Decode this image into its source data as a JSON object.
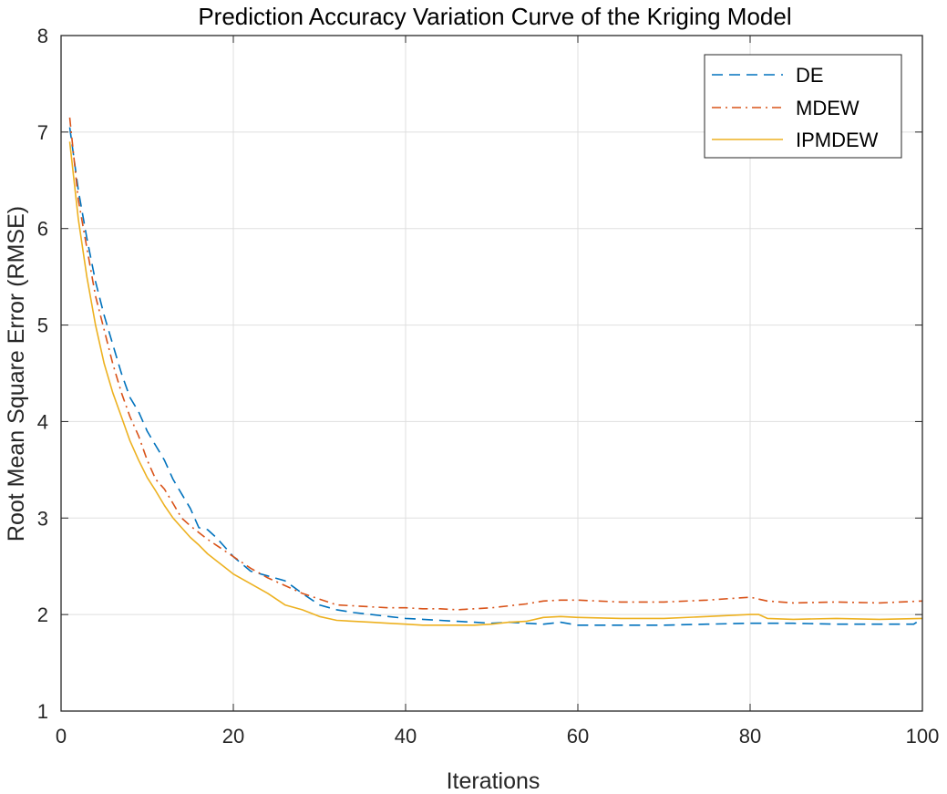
{
  "chart_data": {
    "type": "line",
    "title": "Prediction Accuracy Variation Curve of the Kriging Model",
    "xlabel": "Iterations",
    "ylabel": "Root Mean Square Error (RMSE)",
    "xlim": [
      0,
      100
    ],
    "ylim": [
      1,
      8
    ],
    "xticks": [
      0,
      20,
      40,
      60,
      80,
      100
    ],
    "yticks": [
      1,
      2,
      3,
      4,
      5,
      6,
      7,
      8
    ],
    "grid": true,
    "legend": "top-right",
    "series": [
      {
        "name": "DE",
        "style": "dashed",
        "color": "#0072BD",
        "x": [
          1,
          2,
          3,
          4,
          5,
          6,
          7,
          8,
          9,
          10,
          11,
          12,
          13,
          14,
          15,
          16,
          17,
          18,
          19,
          20,
          22,
          24,
          26,
          28,
          30,
          32,
          34,
          36,
          38,
          40,
          42,
          44,
          46,
          48,
          50,
          52,
          54,
          56,
          58,
          60,
          65,
          70,
          75,
          80,
          85,
          90,
          95,
          99,
          100
        ],
        "values": [
          7.05,
          6.4,
          5.9,
          5.45,
          5.1,
          4.8,
          4.5,
          4.25,
          4.1,
          3.9,
          3.75,
          3.6,
          3.4,
          3.25,
          3.1,
          2.9,
          2.88,
          2.8,
          2.7,
          2.6,
          2.45,
          2.4,
          2.35,
          2.22,
          2.1,
          2.05,
          2.02,
          2.0,
          1.98,
          1.96,
          1.95,
          1.94,
          1.93,
          1.92,
          1.91,
          1.92,
          1.91,
          1.9,
          1.92,
          1.89,
          1.89,
          1.89,
          1.9,
          1.91,
          1.91,
          1.9,
          1.9,
          1.9,
          1.96
        ]
      },
      {
        "name": "MDEW",
        "style": "dashdot",
        "color": "#D95319",
        "x": [
          1,
          2,
          3,
          4,
          5,
          6,
          7,
          8,
          9,
          10,
          11,
          12,
          13,
          14,
          15,
          16,
          17,
          18,
          19,
          20,
          22,
          24,
          26,
          28,
          30,
          32,
          34,
          36,
          38,
          40,
          42,
          44,
          46,
          48,
          50,
          52,
          54,
          56,
          58,
          60,
          65,
          70,
          75,
          80,
          82,
          85,
          90,
          95,
          100
        ],
        "values": [
          7.15,
          6.3,
          5.8,
          5.3,
          4.95,
          4.6,
          4.3,
          4.05,
          3.85,
          3.6,
          3.4,
          3.3,
          3.15,
          3.0,
          2.92,
          2.85,
          2.78,
          2.72,
          2.66,
          2.6,
          2.48,
          2.38,
          2.3,
          2.22,
          2.16,
          2.1,
          2.09,
          2.08,
          2.07,
          2.07,
          2.06,
          2.06,
          2.05,
          2.06,
          2.07,
          2.09,
          2.11,
          2.14,
          2.15,
          2.15,
          2.13,
          2.13,
          2.15,
          2.18,
          2.14,
          2.12,
          2.13,
          2.12,
          2.14
        ]
      },
      {
        "name": "IPMDEW",
        "style": "solid",
        "color": "#EDB120",
        "x": [
          1,
          2,
          3,
          4,
          5,
          6,
          7,
          8,
          9,
          10,
          11,
          12,
          13,
          14,
          15,
          16,
          17,
          18,
          19,
          20,
          22,
          24,
          26,
          28,
          30,
          32,
          34,
          36,
          38,
          40,
          42,
          44,
          46,
          48,
          50,
          52,
          54,
          56,
          58,
          60,
          65,
          70,
          75,
          80,
          81,
          82,
          85,
          90,
          95,
          100
        ],
        "values": [
          6.9,
          6.1,
          5.5,
          5.0,
          4.6,
          4.3,
          4.05,
          3.8,
          3.6,
          3.42,
          3.28,
          3.13,
          3.0,
          2.9,
          2.8,
          2.72,
          2.63,
          2.56,
          2.49,
          2.42,
          2.32,
          2.22,
          2.1,
          2.05,
          1.98,
          1.94,
          1.93,
          1.92,
          1.91,
          1.9,
          1.89,
          1.89,
          1.89,
          1.89,
          1.9,
          1.92,
          1.93,
          1.97,
          1.98,
          1.97,
          1.96,
          1.96,
          1.98,
          2.0,
          2.0,
          1.96,
          1.95,
          1.96,
          1.95,
          1.96
        ]
      }
    ]
  }
}
